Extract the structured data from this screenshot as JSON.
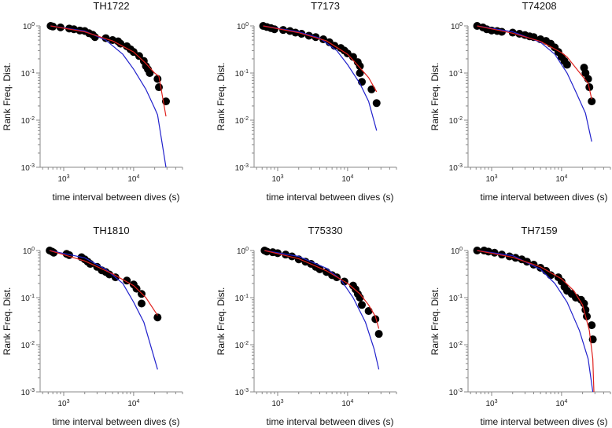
{
  "chart_data": {
    "type": "scatter",
    "layout": "2x3 grid of log-log panels",
    "xlabel": "time interval between dives (s)",
    "ylabel": "Rank Freq. Dist.",
    "xscale": "log",
    "yscale": "log",
    "xlim": [
      460,
      50000
    ],
    "ylim": [
      0.001,
      1
    ],
    "x_ticks": [
      {
        "value": 1000,
        "base": "10",
        "exp": "3"
      },
      {
        "value": 10000,
        "base": "10",
        "exp": "4"
      }
    ],
    "y_ticks": [
      {
        "value": 1,
        "base": "10",
        "exp": "0"
      },
      {
        "value": 0.1,
        "base": "10",
        "exp": "-1"
      },
      {
        "value": 0.01,
        "base": "10",
        "exp": "-2"
      },
      {
        "value": 0.001,
        "base": "10",
        "exp": "-3"
      }
    ],
    "grid": false,
    "colors": {
      "points": "#000000",
      "red_fit": "#e0201c",
      "blue_fit": "#2222cc",
      "axis": "#888888"
    },
    "series_names": [
      "observed",
      "red fit",
      "blue fit"
    ],
    "panels": [
      {
        "title": "TH1722",
        "points": [
          [
            650,
            1.0
          ],
          [
            700,
            0.97
          ],
          [
            900,
            0.93
          ],
          [
            1200,
            0.88
          ],
          [
            1400,
            0.85
          ],
          [
            1700,
            0.8
          ],
          [
            2000,
            0.78
          ],
          [
            2300,
            0.7
          ],
          [
            2600,
            0.65
          ],
          [
            2800,
            0.58
          ],
          [
            4000,
            0.55
          ],
          [
            5000,
            0.5
          ],
          [
            6000,
            0.47
          ],
          [
            6500,
            0.42
          ],
          [
            8000,
            0.37
          ],
          [
            9000,
            0.32
          ],
          [
            10000,
            0.28
          ],
          [
            12000,
            0.23
          ],
          [
            14000,
            0.18
          ],
          [
            15000,
            0.14
          ],
          [
            16000,
            0.12
          ],
          [
            17000,
            0.1
          ],
          [
            22000,
            0.075
          ],
          [
            23000,
            0.05
          ],
          [
            29000,
            0.025
          ]
        ],
        "red": [
          [
            650,
            1
          ],
          [
            2000,
            0.75
          ],
          [
            5000,
            0.48
          ],
          [
            10000,
            0.28
          ],
          [
            15000,
            0.16
          ],
          [
            20000,
            0.1
          ],
          [
            23000,
            0.085
          ],
          [
            29000,
            0.012
          ]
        ],
        "blue": [
          [
            650,
            1
          ],
          [
            2000,
            0.78
          ],
          [
            4000,
            0.5
          ],
          [
            7000,
            0.25
          ],
          [
            10000,
            0.12
          ],
          [
            15000,
            0.045
          ],
          [
            20000,
            0.018
          ],
          [
            22000,
            0.013
          ],
          [
            29000,
            0.001
          ]
        ]
      },
      {
        "title": "T7173",
        "points": [
          [
            620,
            1
          ],
          [
            700,
            0.95
          ],
          [
            800,
            0.9
          ],
          [
            900,
            0.85
          ],
          [
            1200,
            0.82
          ],
          [
            1500,
            0.78
          ],
          [
            1800,
            0.72
          ],
          [
            2200,
            0.68
          ],
          [
            2800,
            0.62
          ],
          [
            3500,
            0.58
          ],
          [
            4500,
            0.52
          ],
          [
            5500,
            0.45
          ],
          [
            6500,
            0.38
          ],
          [
            8000,
            0.34
          ],
          [
            9000,
            0.3
          ],
          [
            10000,
            0.26
          ],
          [
            12000,
            0.22
          ],
          [
            14000,
            0.17
          ],
          [
            15000,
            0.14
          ],
          [
            15000,
            0.1
          ],
          [
            16000,
            0.065
          ],
          [
            22000,
            0.045
          ],
          [
            26000,
            0.023
          ]
        ],
        "red": [
          [
            620,
            1
          ],
          [
            2000,
            0.72
          ],
          [
            5000,
            0.48
          ],
          [
            10000,
            0.25
          ],
          [
            15000,
            0.13
          ],
          [
            20000,
            0.08
          ],
          [
            26000,
            0.04
          ]
        ],
        "blue": [
          [
            620,
            1
          ],
          [
            2000,
            0.75
          ],
          [
            4000,
            0.55
          ],
          [
            7000,
            0.3
          ],
          [
            10000,
            0.15
          ],
          [
            15000,
            0.06
          ],
          [
            20000,
            0.025
          ],
          [
            26000,
            0.006
          ]
        ]
      },
      {
        "title": "T74208",
        "points": [
          [
            620,
            1
          ],
          [
            750,
            0.93
          ],
          [
            850,
            0.85
          ],
          [
            1000,
            0.8
          ],
          [
            1200,
            0.78
          ],
          [
            1400,
            0.75
          ],
          [
            2000,
            0.72
          ],
          [
            2500,
            0.68
          ],
          [
            3000,
            0.64
          ],
          [
            3500,
            0.6
          ],
          [
            4000,
            0.58
          ],
          [
            5000,
            0.52
          ],
          [
            6000,
            0.48
          ],
          [
            7000,
            0.42
          ],
          [
            8000,
            0.35
          ],
          [
            9000,
            0.28
          ],
          [
            10000,
            0.22
          ],
          [
            11000,
            0.18
          ],
          [
            12000,
            0.15
          ],
          [
            21000,
            0.13
          ],
          [
            22000,
            0.1
          ],
          [
            24000,
            0.075
          ],
          [
            25000,
            0.05
          ],
          [
            27000,
            0.025
          ]
        ],
        "red": [
          [
            620,
            1
          ],
          [
            2000,
            0.7
          ],
          [
            5000,
            0.47
          ],
          [
            10000,
            0.27
          ],
          [
            12000,
            0.22
          ],
          [
            20000,
            0.085
          ],
          [
            24000,
            0.06
          ],
          [
            27000,
            0.028
          ]
        ],
        "blue": [
          [
            620,
            1
          ],
          [
            2000,
            0.75
          ],
          [
            5000,
            0.45
          ],
          [
            8000,
            0.25
          ],
          [
            12000,
            0.1
          ],
          [
            16000,
            0.04
          ],
          [
            22000,
            0.014
          ],
          [
            27000,
            0.0035
          ]
        ]
      },
      {
        "title": "TH1810",
        "points": [
          [
            630,
            1
          ],
          [
            680,
            0.95
          ],
          [
            720,
            0.9
          ],
          [
            1100,
            0.85
          ],
          [
            1200,
            0.8
          ],
          [
            1800,
            0.72
          ],
          [
            2000,
            0.65
          ],
          [
            2200,
            0.58
          ],
          [
            2400,
            0.52
          ],
          [
            3000,
            0.45
          ],
          [
            3500,
            0.38
          ],
          [
            4000,
            0.35
          ],
          [
            4500,
            0.31
          ],
          [
            5500,
            0.27
          ],
          [
            8000,
            0.23
          ],
          [
            10000,
            0.19
          ],
          [
            11000,
            0.155
          ],
          [
            13000,
            0.12
          ],
          [
            13000,
            0.075
          ],
          [
            22000,
            0.038
          ]
        ],
        "red": [
          [
            630,
            1
          ],
          [
            2000,
            0.6
          ],
          [
            5000,
            0.32
          ],
          [
            10000,
            0.18
          ],
          [
            15000,
            0.1
          ],
          [
            22000,
            0.042
          ]
        ],
        "blue": [
          [
            630,
            1
          ],
          [
            2000,
            0.7
          ],
          [
            4000,
            0.4
          ],
          [
            7000,
            0.2
          ],
          [
            10000,
            0.08
          ],
          [
            14000,
            0.03
          ],
          [
            22000,
            0.003
          ]
        ]
      },
      {
        "title": "T75330",
        "points": [
          [
            650,
            1
          ],
          [
            700,
            0.95
          ],
          [
            850,
            0.92
          ],
          [
            1000,
            0.88
          ],
          [
            1300,
            0.82
          ],
          [
            1600,
            0.75
          ],
          [
            2000,
            0.65
          ],
          [
            2500,
            0.58
          ],
          [
            3000,
            0.52
          ],
          [
            3500,
            0.45
          ],
          [
            4000,
            0.4
          ],
          [
            5000,
            0.35
          ],
          [
            6000,
            0.3
          ],
          [
            7000,
            0.27
          ],
          [
            9000,
            0.22
          ],
          [
            12000,
            0.18
          ],
          [
            13000,
            0.15
          ],
          [
            14000,
            0.12
          ],
          [
            15000,
            0.1
          ],
          [
            16000,
            0.07
          ],
          [
            20000,
            0.052
          ],
          [
            25000,
            0.035
          ],
          [
            28000,
            0.017
          ]
        ],
        "red": [
          [
            650,
            1
          ],
          [
            2000,
            0.67
          ],
          [
            5000,
            0.37
          ],
          [
            10000,
            0.2
          ],
          [
            15000,
            0.12
          ],
          [
            20000,
            0.07
          ],
          [
            25000,
            0.04
          ],
          [
            28000,
            0.022
          ]
        ],
        "blue": [
          [
            650,
            1
          ],
          [
            2000,
            0.75
          ],
          [
            5000,
            0.42
          ],
          [
            8000,
            0.24
          ],
          [
            12000,
            0.1
          ],
          [
            18000,
            0.03
          ],
          [
            24000,
            0.008
          ],
          [
            28000,
            0.003
          ]
        ]
      },
      {
        "title": "TH7159",
        "points": [
          [
            620,
            1
          ],
          [
            780,
            1.0
          ],
          [
            900,
            0.95
          ],
          [
            1100,
            0.9
          ],
          [
            1400,
            0.82
          ],
          [
            1800,
            0.75
          ],
          [
            2200,
            0.7
          ],
          [
            2700,
            0.65
          ],
          [
            3200,
            0.58
          ],
          [
            4000,
            0.5
          ],
          [
            5000,
            0.43
          ],
          [
            6000,
            0.37
          ],
          [
            7000,
            0.3
          ],
          [
            9000,
            0.27
          ],
          [
            10000,
            0.22
          ],
          [
            11000,
            0.17
          ],
          [
            12000,
            0.14
          ],
          [
            14000,
            0.12
          ],
          [
            16000,
            0.1
          ],
          [
            19000,
            0.09
          ],
          [
            21000,
            0.075
          ],
          [
            22000,
            0.055
          ],
          [
            23000,
            0.04
          ],
          [
            27000,
            0.026
          ],
          [
            28000,
            0.013
          ]
        ],
        "red": [
          [
            620,
            1
          ],
          [
            2000,
            0.72
          ],
          [
            5000,
            0.45
          ],
          [
            10000,
            0.25
          ],
          [
            15000,
            0.14
          ],
          [
            20000,
            0.07
          ],
          [
            25000,
            0.02
          ],
          [
            28000,
            0.005
          ],
          [
            29000,
            0.001
          ]
        ],
        "blue": [
          [
            620,
            1
          ],
          [
            2000,
            0.78
          ],
          [
            5000,
            0.4
          ],
          [
            8000,
            0.2
          ],
          [
            12000,
            0.08
          ],
          [
            18000,
            0.02
          ],
          [
            24000,
            0.005
          ],
          [
            28000,
            0.001
          ]
        ]
      }
    ]
  }
}
